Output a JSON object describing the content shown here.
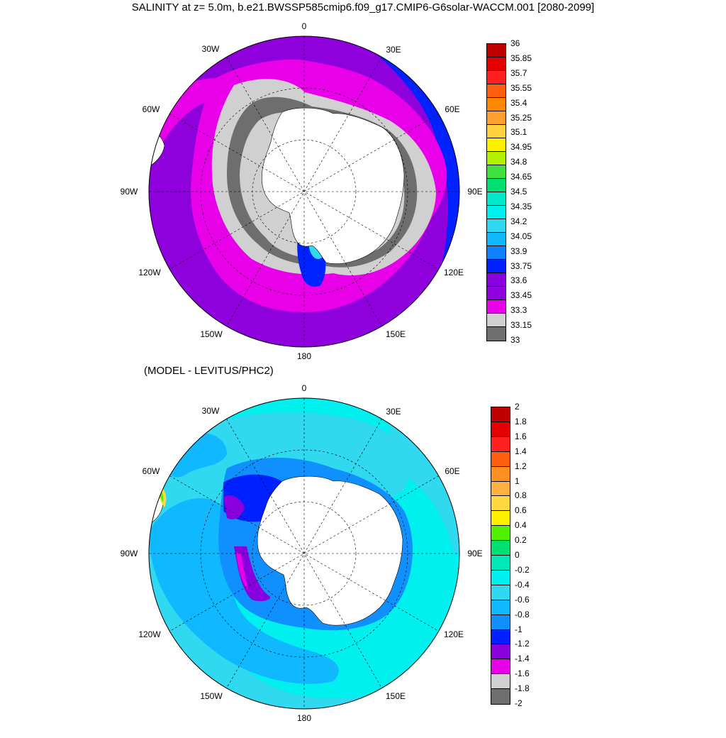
{
  "title": "SALINITY at z=   5.0m, b.e21.BWSSP585cmip6.f09_g17.CMIP6-G6solar-WACCM.001 [2080-2099]",
  "subtitle": "(MODEL - LEVITUS/PHC2)",
  "longitude_labels": [
    "0",
    "30E",
    "60E",
    "90E",
    "120E",
    "150E",
    "180",
    "150W",
    "120W",
    "90W",
    "60W",
    "30W"
  ],
  "colors": {
    "land": "#ffffff",
    "grid": "#000000"
  },
  "top_map": {
    "colorbar_labels": [
      "36",
      "35.85",
      "35.7",
      "35.55",
      "35.4",
      "35.25",
      "35.1",
      "34.95",
      "34.8",
      "34.65",
      "34.5",
      "34.35",
      "34.2",
      "34.05",
      "33.9",
      "33.75",
      "33.6",
      "33.45",
      "33.3",
      "33.15",
      "33"
    ],
    "colorbar_colors": [
      "#c00000",
      "#e40000",
      "#ff2020",
      "#ff6010",
      "#ff8800",
      "#ffa030",
      "#ffd040",
      "#fff000",
      "#b0f000",
      "#40e040",
      "#00e070",
      "#00e8c8",
      "#00f0f0",
      "#30d8f0",
      "#10b8ff",
      "#1080ff",
      "#0020ff",
      "#8800dd",
      "#9000e0",
      "#e800e8",
      "#d0d0d0",
      "#6e6e6e"
    ]
  },
  "bottom_map": {
    "colorbar_labels": [
      "2",
      "1.8",
      "1.6",
      "1.4",
      "1.2",
      "1",
      "0.8",
      "0.6",
      "0.4",
      "0.2",
      "0",
      "-0.2",
      "-0.4",
      "-0.6",
      "-0.8",
      "-1",
      "-1.2",
      "-1.4",
      "-1.6",
      "-1.8",
      "-2"
    ],
    "colorbar_colors": [
      "#c00000",
      "#e40000",
      "#ff2020",
      "#ff6010",
      "#ff9020",
      "#ffb040",
      "#ffd840",
      "#fff000",
      "#50f000",
      "#00e070",
      "#00e8b8",
      "#00f0f0",
      "#30d8f0",
      "#10b8ff",
      "#1090ff",
      "#0020ff",
      "#8800dd",
      "#e800e8",
      "#d0d0d0",
      "#6e6e6e"
    ]
  }
}
